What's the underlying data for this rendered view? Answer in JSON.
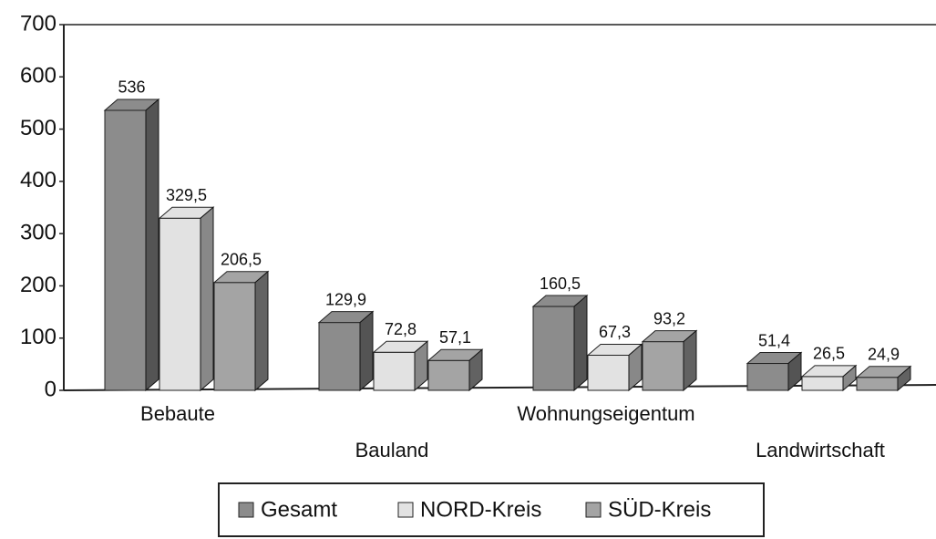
{
  "chart_data": {
    "type": "bar3d",
    "categories": [
      "Bebaute",
      "Bauland",
      "Wohnungseigentum",
      "Landwirtschaft"
    ],
    "series": [
      {
        "name": "Gesamt",
        "color": "#8c8c8c",
        "values": [
          536,
          129.9,
          160.5,
          51.4
        ],
        "value_labels": [
          "536",
          "129,9",
          "160,5",
          "51,4"
        ]
      },
      {
        "name": "NORD-Kreis",
        "color": "#e2e2e2",
        "values": [
          329.5,
          72.8,
          67.3,
          26.5
        ],
        "value_labels": [
          "329,5",
          "72,8",
          "67,3",
          "26,5"
        ]
      },
      {
        "name": "SÜD-Kreis",
        "color": "#a4a4a4",
        "values": [
          206.5,
          57.1,
          93.2,
          24.9
        ],
        "value_labels": [
          "206,5",
          "57,1",
          "93,2",
          "24,9"
        ]
      }
    ],
    "ylim": [
      0,
      700
    ],
    "yticks": [
      0,
      100,
      200,
      300,
      400,
      500,
      600,
      700
    ],
    "legend": "bottom"
  }
}
